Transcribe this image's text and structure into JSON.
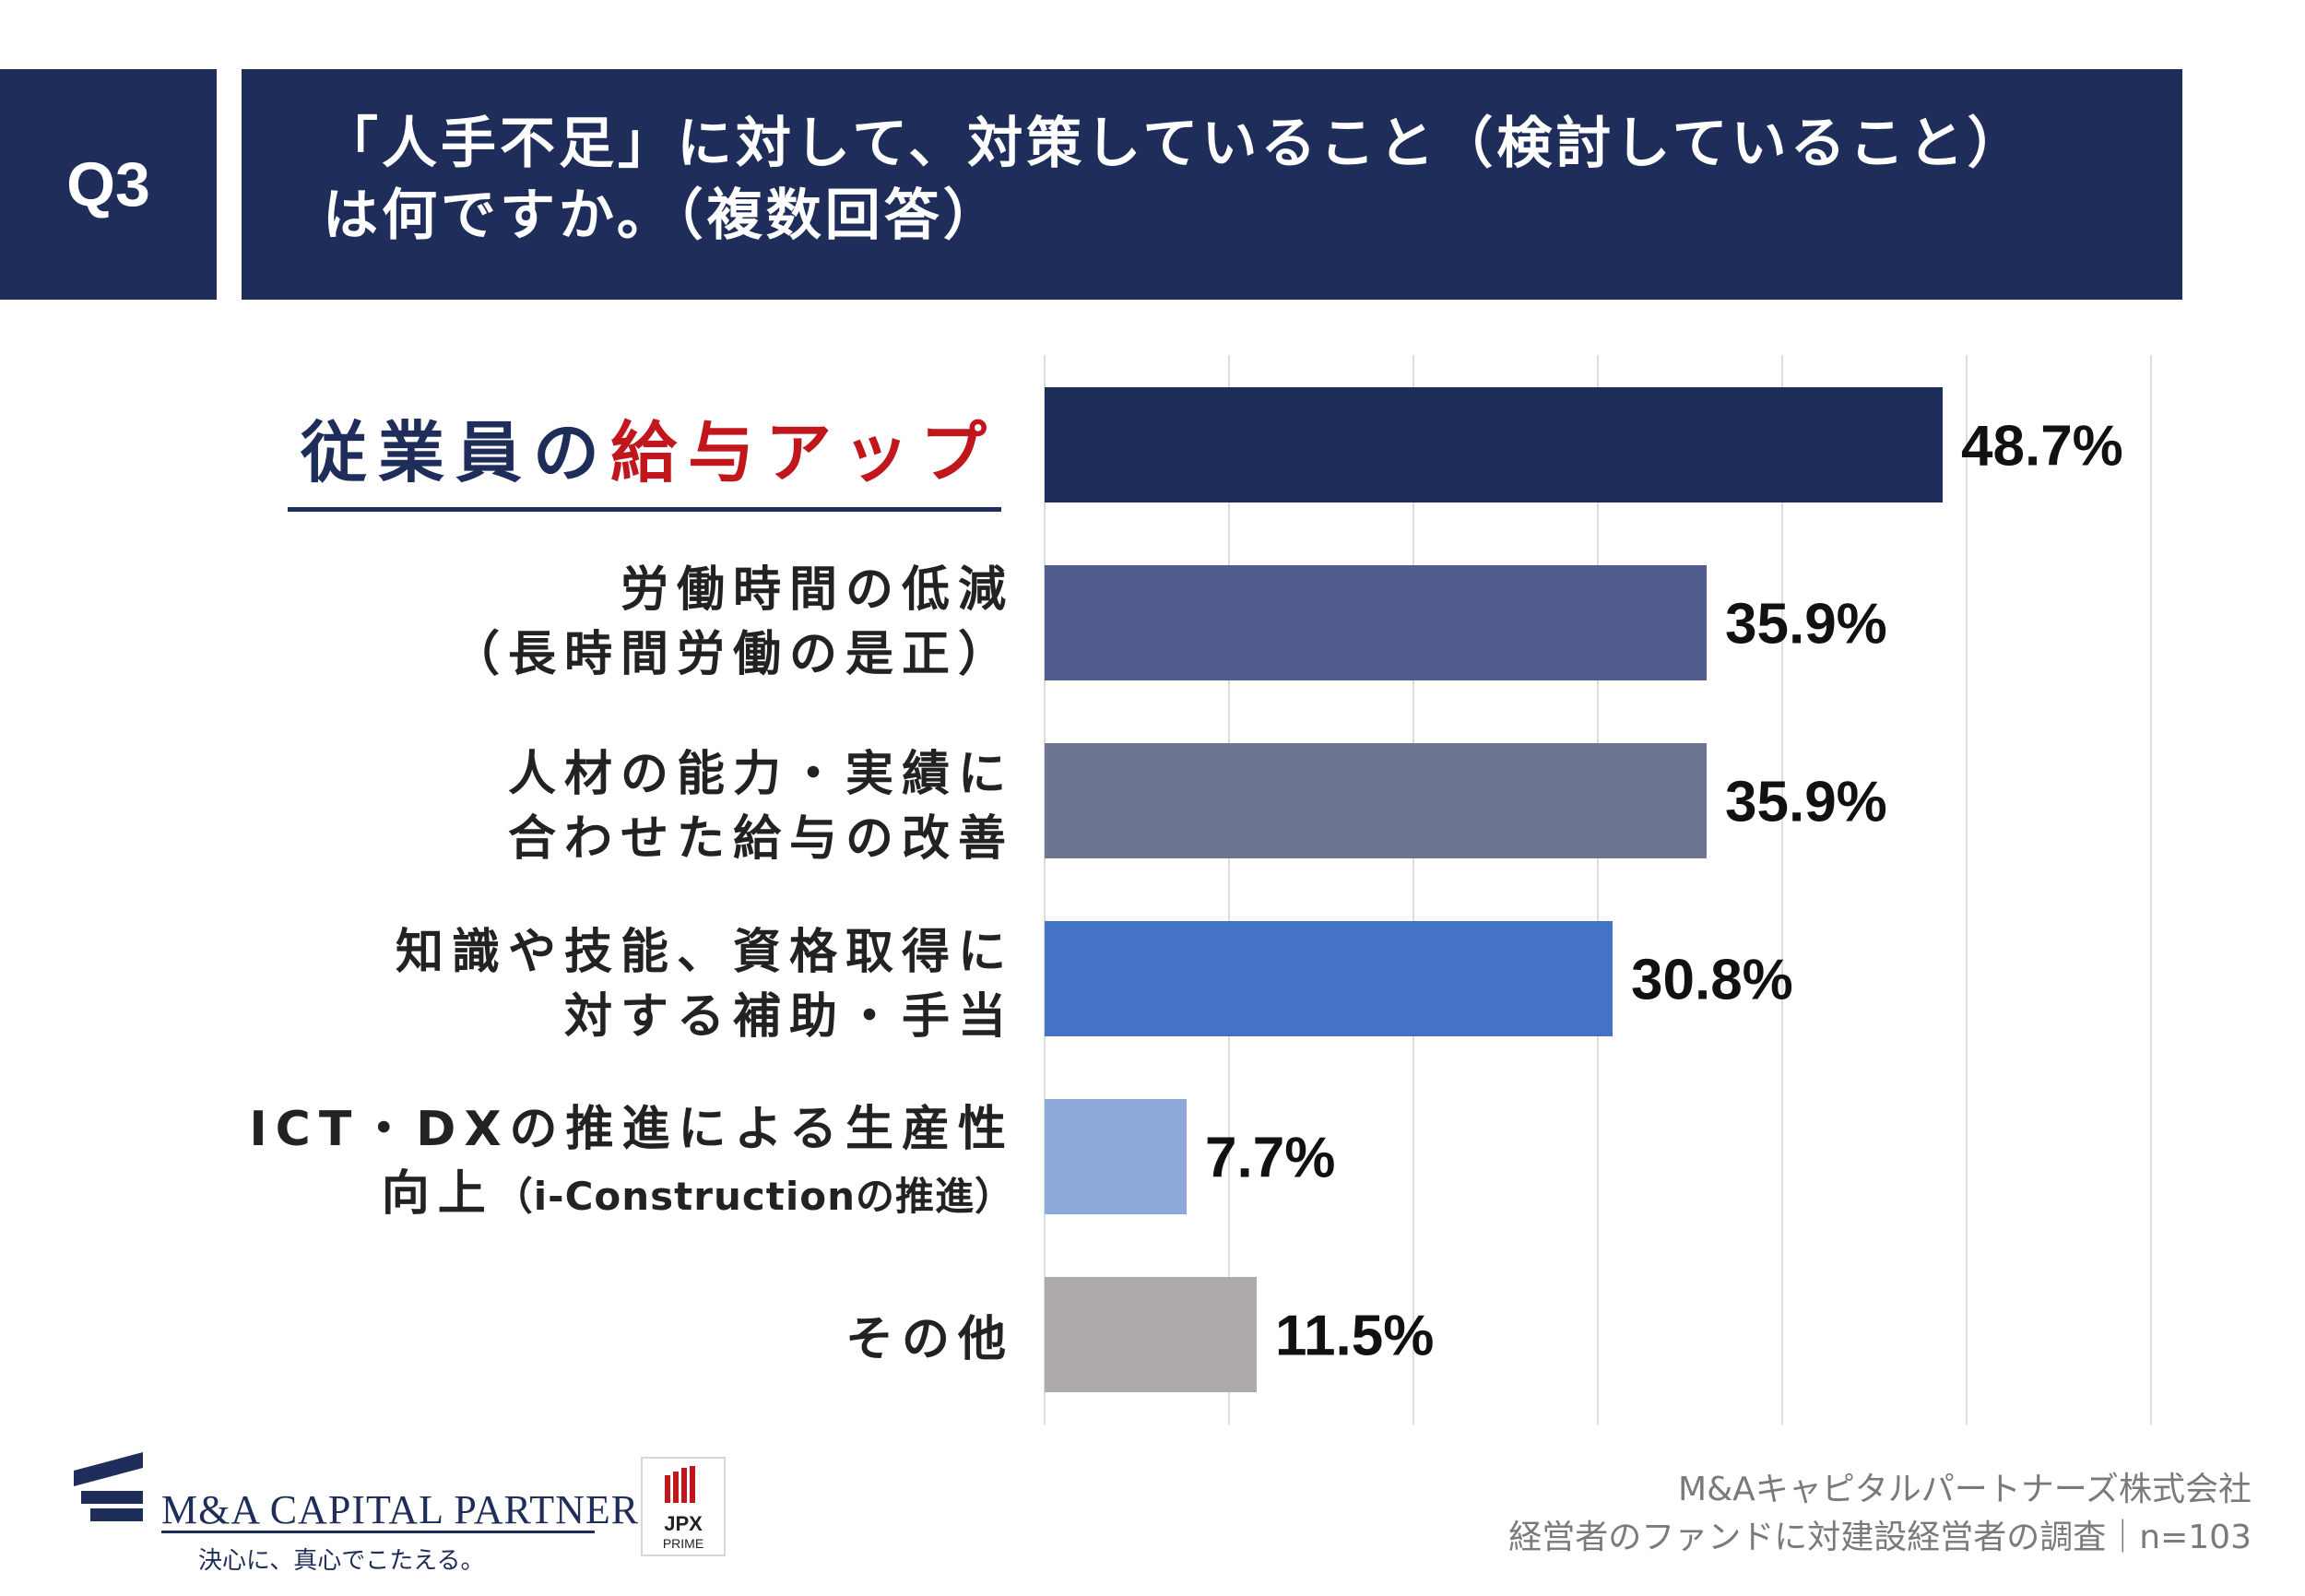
{
  "header": {
    "q_label": "Q3",
    "title_line1": "「人手不足」に対して、対策していること（検討していること）",
    "title_line2": "は何ですか。（複数回答）"
  },
  "highlight": {
    "part1": "従業員の",
    "part2": "給与アップ"
  },
  "labels": [
    {
      "lines": [
        "労働時間の低減",
        "（長時間労働の是正）"
      ]
    },
    {
      "lines": [
        "人材の能力・実績に",
        "合わせた給与の改善"
      ]
    },
    {
      "lines": [
        "知識や技能、資格取得に",
        "対する補助・手当"
      ]
    },
    {
      "lines": [
        "ICT・DXの推進による生産性",
        "向上",
        "（i-Constructionの推進）"
      ]
    },
    {
      "lines": [
        "その他"
      ]
    }
  ],
  "chart_data": {
    "type": "bar",
    "orientation": "horizontal",
    "categories": [
      "従業員の給与アップ",
      "労働時間の低減（長時間労働の是正）",
      "人材の能力・実績に合わせた給与の改善",
      "知識や技能、資格取得に対する補助・手当",
      "ICT・DXの推進による生産性向上（i-Constructionの推進）",
      "その他"
    ],
    "values": [
      48.7,
      35.9,
      35.9,
      30.8,
      7.7,
      11.5
    ],
    "value_labels": [
      "48.7%",
      "35.9%",
      "35.9%",
      "30.8%",
      "7.7%",
      "11.5%"
    ],
    "colors": [
      "#1f2d5a",
      "#515d8f",
      "#6e7591",
      "#4472c4",
      "#8eaadb",
      "#aeaaaa"
    ],
    "xlim": [
      0,
      60
    ],
    "grid": true
  },
  "footer": {
    "company": "M&Aキャピタルパートナーズ株式会社",
    "survey": "経営者のファンドに対建設経営者の調査｜n=103"
  },
  "logo": {
    "name": "M&A CAPITAL PARTNERS",
    "tagline": "決心に、真心でこたえる。",
    "jpx_top": "JPX",
    "jpx_bottom": "PRIME"
  }
}
